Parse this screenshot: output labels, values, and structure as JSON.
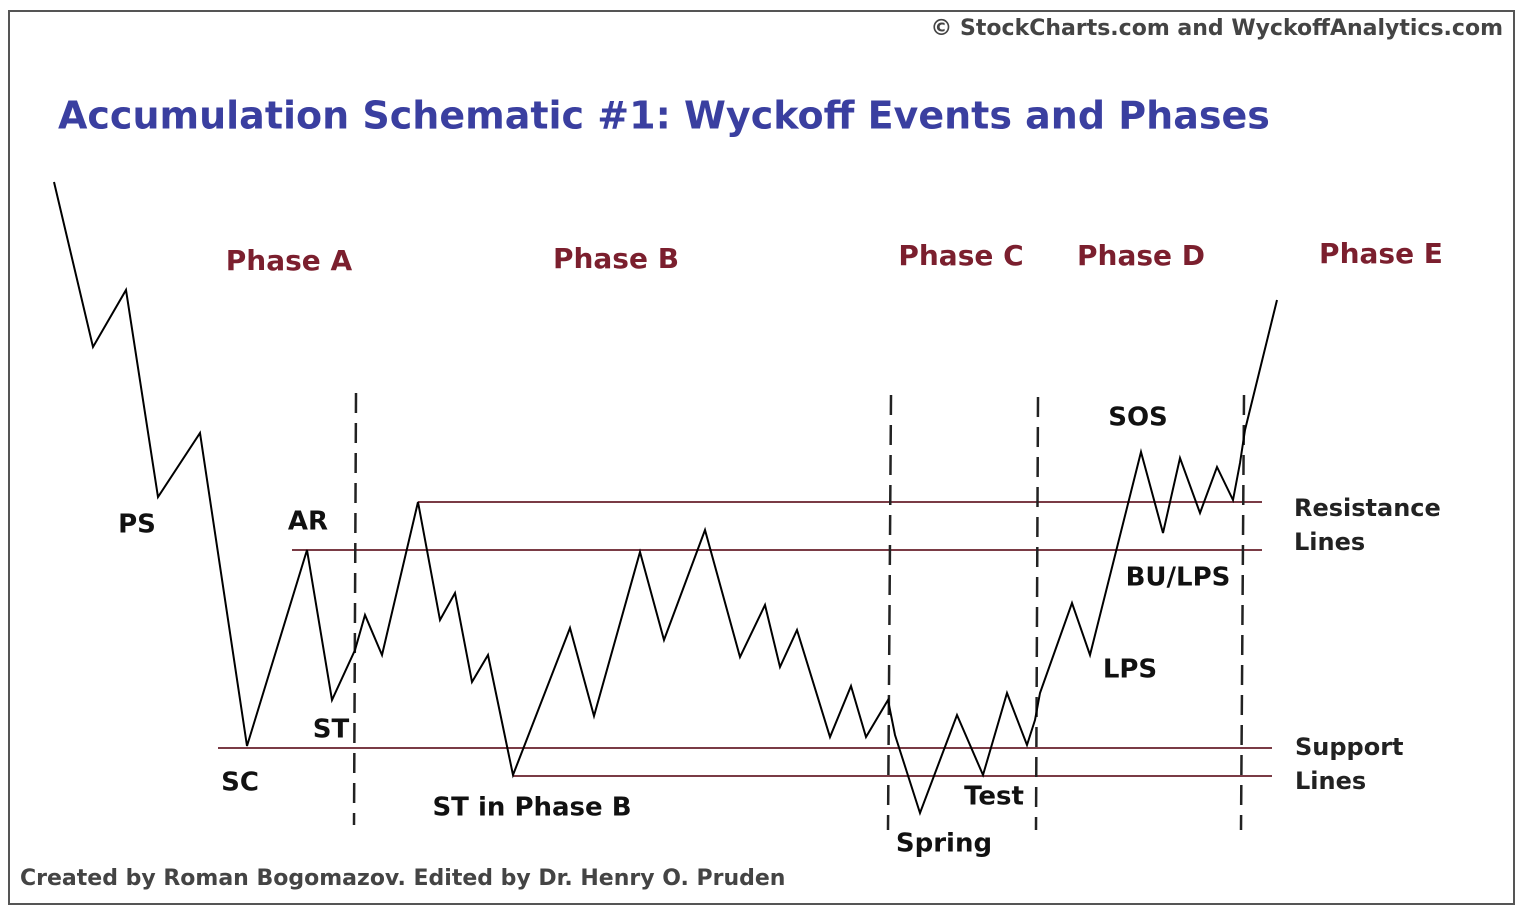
{
  "header": {
    "copyright": "© StockCharts.com and WyckoffAnalytics.com",
    "title": "Accumulation Schematic #1: Wyckoff Events and Phases"
  },
  "phases": [
    "Phase A",
    "Phase B",
    "Phase C",
    "Phase D",
    "Phase E"
  ],
  "events": [
    "PS",
    "AR",
    "ST",
    "SC",
    "ST in Phase B",
    "Spring",
    "Test",
    "LPS",
    "BU/LPS",
    "SOS"
  ],
  "line_labels": {
    "resistance": [
      "Resistance",
      "Lines"
    ],
    "support": [
      "Support",
      "Lines"
    ]
  },
  "footer": {
    "credit": "Created by Roman Bogomazov. Edited by Dr. Henry O. Pruden"
  }
}
